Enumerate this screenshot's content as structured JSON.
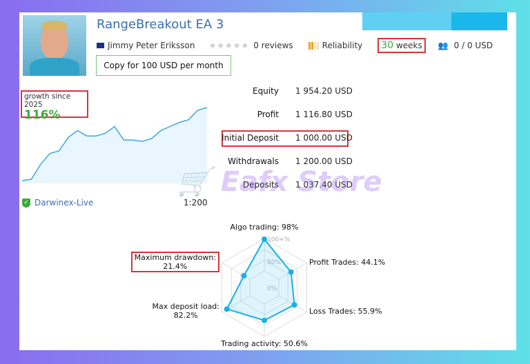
{
  "header": {
    "title": "RangeBreakout EA 3",
    "author": "Jimmy Peter Eriksson",
    "reviews": "0 reviews",
    "reliability": "Reliability",
    "weeks_num": "30",
    "weeks_label": "weeks",
    "subscribers": "0 / 0 USD",
    "copy_button": "Copy for 100 USD per month"
  },
  "growth": {
    "label": "growth since 2025",
    "value": "116%",
    "series": [
      0,
      1,
      12,
      20,
      22,
      32,
      37,
      33,
      33,
      35,
      40,
      30,
      30,
      29,
      31,
      37,
      40,
      43,
      45,
      52,
      54
    ]
  },
  "account": {
    "broker": "Darwinex-Live",
    "leverage": "1:200"
  },
  "stats": [
    {
      "label": "Equity",
      "value": "1 954.20 USD",
      "amount": 1954.2,
      "color": "#1ab8ea"
    },
    {
      "label": "Profit",
      "value": "1 116.80 USD",
      "amount": 1116.8,
      "color": "#5fd0f4"
    },
    {
      "label": "Initial Deposit",
      "value": "1 000.00 USD",
      "amount": 1000,
      "color": "#5fd0f4"
    },
    {
      "label": "Withdrawals",
      "value": "1 200.00 USD",
      "amount": 1200,
      "color": "#5fd0f4"
    },
    {
      "label": "Deposits",
      "value": "1 037.40 USD",
      "amount": 1037.4,
      "color": "#5fd0f4"
    }
  ],
  "radar": {
    "scale": [
      "100+%",
      "50%",
      "0%"
    ],
    "axes": [
      {
        "label": "Algo trading: 98%",
        "value": 98
      },
      {
        "label": "Profit Trades: 44.1%",
        "value": 44.1
      },
      {
        "label": "Loss Trades: 55.9%",
        "value": 55.9
      },
      {
        "label": "Trading activity: 50.6%",
        "value": 50.6
      },
      {
        "label": "Max deposit load:",
        "value2": "82.2%",
        "value": 82.2
      },
      {
        "label": "Maximum drawdown:",
        "value2": "21.4%",
        "value": 21.4
      }
    ]
  },
  "watermark": "Eafx Store",
  "colors": {
    "accent": "#1ab8ea",
    "green": "#3aaa3a",
    "highlight": "#d9323a"
  }
}
